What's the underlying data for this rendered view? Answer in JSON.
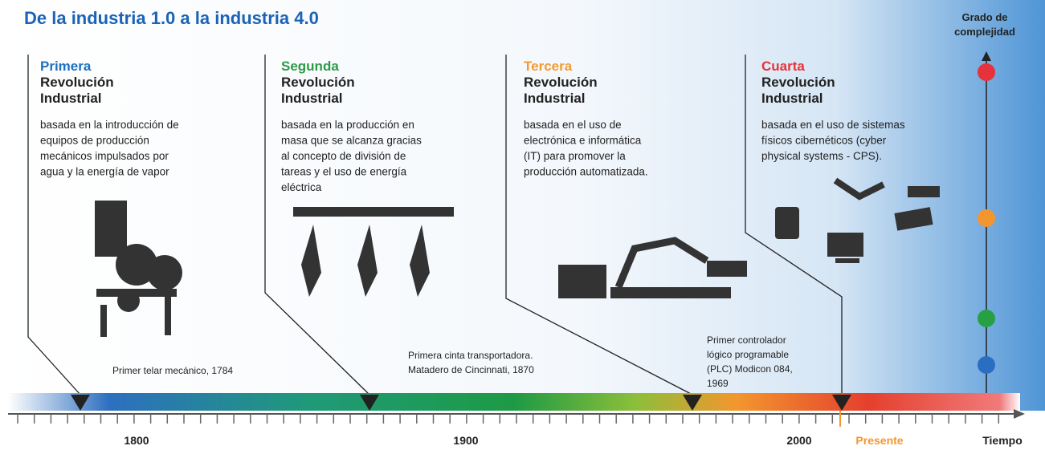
{
  "title": "De la industria 1.0  a la industria 4.0",
  "axis": {
    "y_label": [
      "Grado de",
      "complejidad"
    ],
    "x_label": "Tiempo",
    "years": [
      "1800",
      "1900",
      "2000"
    ],
    "present": "Presente"
  },
  "revolutions": [
    {
      "ordinal": "Primera",
      "heading": [
        "Revolución",
        "Industrial"
      ],
      "description": [
        "basada en la introducción de",
        "equipos de producción",
        "mecánicos impulsados por",
        "agua y la energía de vapor"
      ],
      "milestone": [
        "Primer telar mecánico, 1784"
      ]
    },
    {
      "ordinal": "Segunda",
      "heading": [
        "Revolución",
        "Industrial"
      ],
      "description": [
        "basada en la producción en",
        "masa que se alcanza gracias",
        "al concepto de  división de",
        "tareas y el uso de energía",
        "eléctrica"
      ],
      "milestone": [
        "Primera cinta transportadora.",
        "Matadero de Cincinnati, 1870"
      ]
    },
    {
      "ordinal": "Tercera",
      "heading": [
        "Revolución",
        "Industrial"
      ],
      "description": [
        "basada en el uso de",
        "electrónica e informática",
        "(IT) para promover la",
        "producción automatizada."
      ],
      "milestone": [
        "Primer controlador",
        "lógico programable",
        "(PLC) Modicon 084,",
        "1969"
      ]
    },
    {
      "ordinal": "Cuarta",
      "heading": [
        "Revolución",
        "Industrial"
      ],
      "description": [
        "basada en el uso de sistemas",
        "físicos cibernéticos (cyber",
        "physical systems - CPS)."
      ],
      "milestone": []
    }
  ]
}
